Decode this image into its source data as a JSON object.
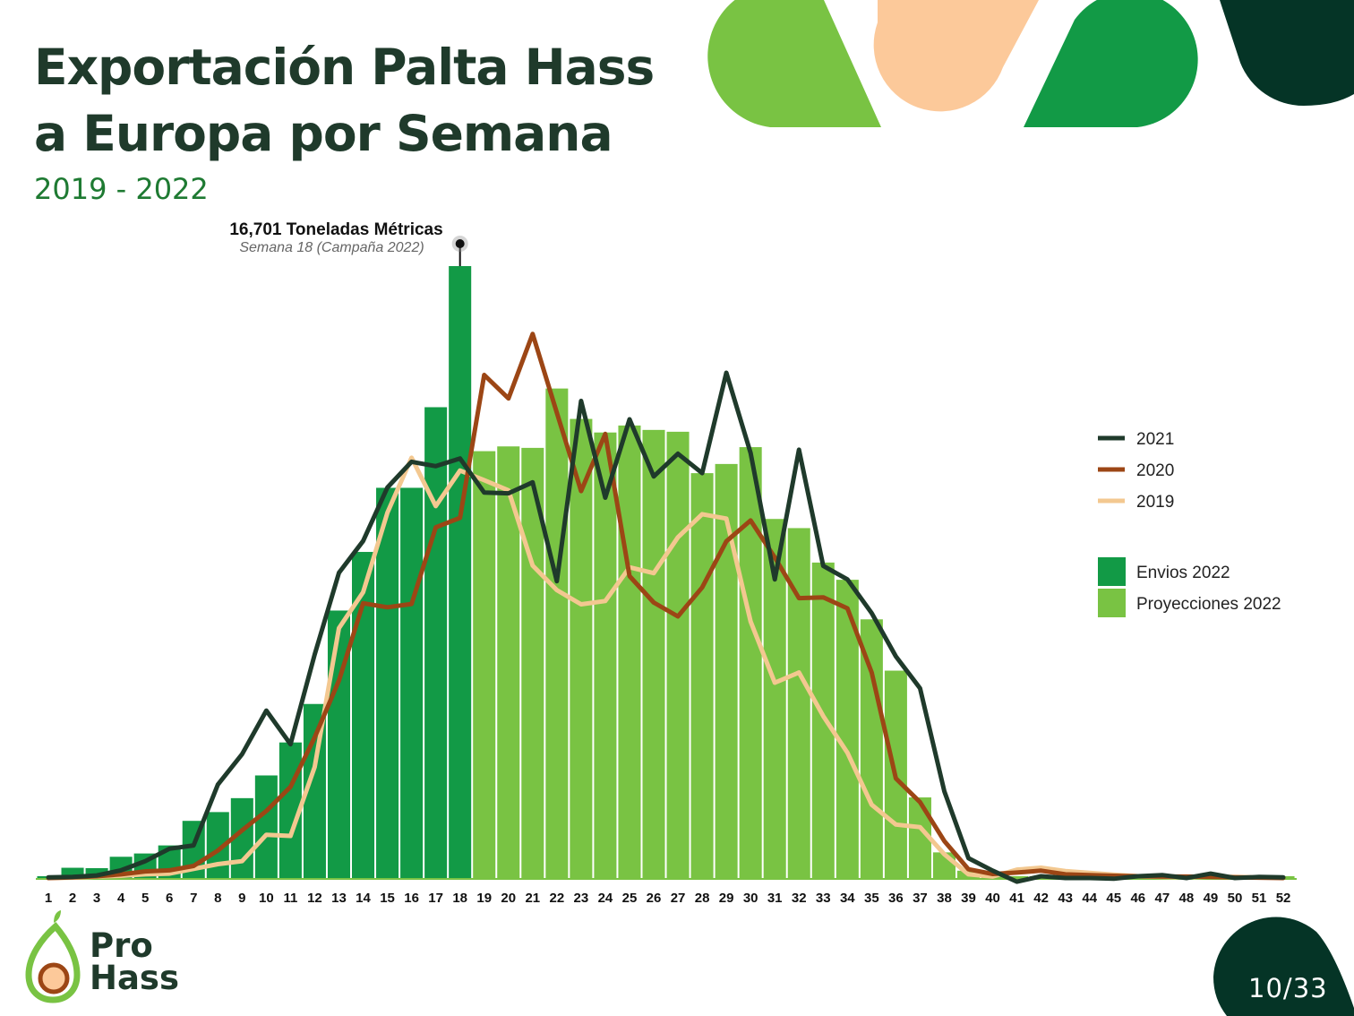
{
  "title_line1": "Exportación Palta Hass",
  "title_line2": "a Europa por Semana",
  "subtitle": "2019 - 2022",
  "annotation": {
    "value_text": "16,701 Toneladas Métricas",
    "sub_text": "Semana 18 (Campaña 2022)"
  },
  "logo": {
    "line1": "Pro",
    "line2": "Hass"
  },
  "page_number": {
    "current": "10",
    "total": "33"
  },
  "colors": {
    "dark_green": "#1f3a2b",
    "brown": "#9c4615",
    "peach": "#f3c890",
    "envios": "#129a46",
    "proyecciones": "#79c343",
    "title": "#1f3a2b",
    "subtitle": "#1e7a32",
    "peach_deco": "#fcc99a",
    "teal_dark": "#053426"
  },
  "chart_data": {
    "type": "bar",
    "title": "Exportación Palta Hass a Europa por Semana",
    "xlabel": "",
    "ylabel": "",
    "ylim": [
      0,
      18400
    ],
    "grid": false,
    "legend_position": "right",
    "categories": [
      "1",
      "2",
      "3",
      "4",
      "5",
      "6",
      "7",
      "8",
      "9",
      "10",
      "11",
      "12",
      "13",
      "14",
      "15",
      "16",
      "17",
      "18",
      "19",
      "20",
      "21",
      "22",
      "23",
      "24",
      "25",
      "26",
      "27",
      "28",
      "29",
      "30",
      "31",
      "32",
      "33",
      "34",
      "35",
      "36",
      "37",
      "38",
      "39",
      "40",
      "41",
      "42",
      "43",
      "44",
      "45",
      "46",
      "47",
      "48",
      "49",
      "50",
      "51",
      "52"
    ],
    "bar_series": [
      {
        "name": "Envios 2022",
        "values": [
          50,
          280,
          270,
          580,
          670,
          890,
          1560,
          1800,
          2180,
          2800,
          3700,
          4750,
          7300,
          8900,
          10650,
          10650,
          12850,
          16701,
          null,
          null,
          null,
          null,
          null,
          null,
          null,
          null,
          null,
          null,
          null,
          null,
          null,
          null,
          null,
          null,
          null,
          null,
          null,
          null,
          null,
          null,
          null,
          null,
          null,
          null,
          null,
          null,
          null,
          null,
          null,
          null,
          null,
          null
        ]
      },
      {
        "name": "Proyecciones 2022",
        "values": [
          null,
          null,
          null,
          null,
          null,
          null,
          null,
          null,
          null,
          null,
          null,
          null,
          null,
          null,
          null,
          null,
          null,
          null,
          11650,
          11780,
          11740,
          13360,
          12530,
          12160,
          12350,
          12230,
          12180,
          11050,
          11300,
          11760,
          9800,
          9550,
          8610,
          8140,
          7060,
          5660,
          2200,
          700,
          200,
          50,
          50,
          50,
          50,
          50,
          50,
          50,
          50,
          50,
          50,
          50,
          50,
          50
        ]
      }
    ],
    "line_series": [
      {
        "name": "2021",
        "values": [
          20,
          30,
          70,
          210,
          460,
          800,
          890,
          2550,
          3380,
          4570,
          3650,
          6100,
          8330,
          9200,
          10660,
          11360,
          11240,
          11450,
          10520,
          10500,
          10800,
          8100,
          13020,
          10380,
          12520,
          10960,
          11580,
          11050,
          13790,
          11600,
          8150,
          11690,
          8520,
          8150,
          7230,
          6050,
          5180,
          2370,
          540,
          200,
          -100,
          50,
          0,
          0,
          -20,
          50,
          80,
          0,
          120,
          0,
          30,
          20
        ]
      },
      {
        "name": "2020",
        "values": [
          0,
          20,
          50,
          100,
          180,
          210,
          330,
          750,
          1300,
          1830,
          2490,
          3840,
          5390,
          7500,
          7390,
          7480,
          9570,
          9830,
          13730,
          13090,
          14850,
          12700,
          10560,
          12120,
          8240,
          7520,
          7140,
          7930,
          9190,
          9760,
          8750,
          7640,
          7660,
          7360,
          5610,
          2720,
          2070,
          1010,
          240,
          110,
          150,
          200,
          100,
          80,
          60,
          50,
          40,
          40,
          30,
          20,
          10,
          0
        ]
      },
      {
        "name": "2019",
        "values": [
          0,
          10,
          40,
          60,
          100,
          120,
          250,
          380,
          460,
          1180,
          1150,
          3030,
          6820,
          7800,
          9970,
          11470,
          10150,
          11120,
          10860,
          10580,
          8530,
          7860,
          7470,
          7560,
          8480,
          8320,
          9300,
          9930,
          9810,
          7000,
          5330,
          5610,
          4420,
          3420,
          2000,
          1460,
          1390,
          650,
          100,
          40,
          230,
          280,
          190,
          140,
          90,
          50,
          30,
          20,
          40,
          30,
          20,
          10
        ]
      }
    ],
    "annotation": {
      "week": "18",
      "value": 16701,
      "label": "16,701 Toneladas Métricas",
      "sublabel": "Semana 18 (Campaña 2022)"
    }
  }
}
